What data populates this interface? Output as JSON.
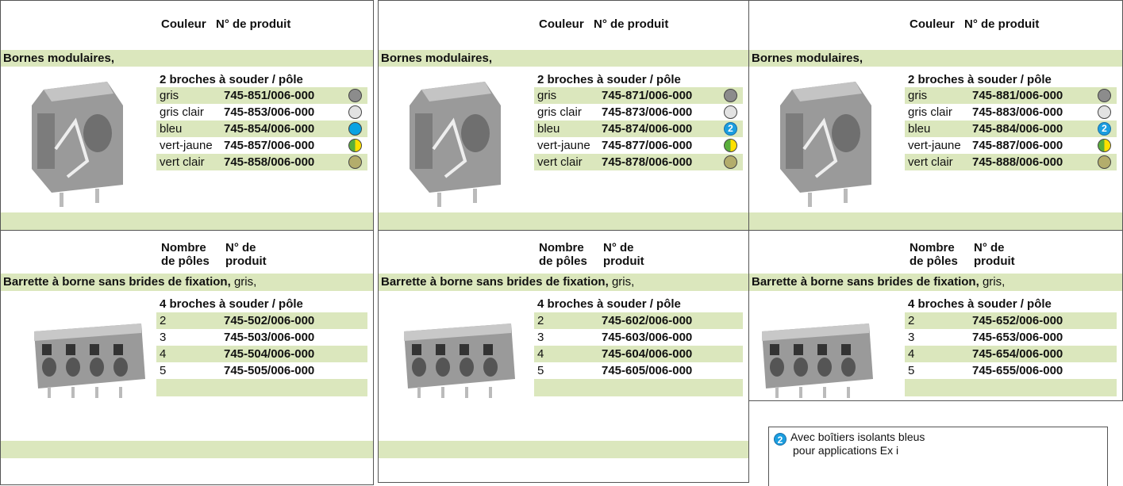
{
  "columns": [
    {
      "header": {
        "color": "Couleur",
        "product": "N° de produit"
      },
      "section1": {
        "title": "Bornes modulaires,",
        "subtitle": "2 broches à souder / pôle",
        "rows": [
          {
            "color": "gris",
            "product": "745-851/006-000"
          },
          {
            "color": "gris clair",
            "product": "745-853/006-000"
          },
          {
            "color": "bleu",
            "product": "745-854/006-000"
          },
          {
            "color": "vert-jaune",
            "product": "745-857/006-000"
          },
          {
            "color": "vert clair",
            "product": "745-858/006-000"
          }
        ]
      },
      "header2": {
        "count_line1": "Nombre",
        "count_line2": "de pôles",
        "product_line1": "N° de",
        "product_line2": "produit"
      },
      "section2": {
        "title": "Barrette à borne sans brides de fixation,",
        "title_suffix": "gris,",
        "subtitle": "4 broches à souder / pôle",
        "rows": [
          {
            "poles": 2,
            "product": "745-502/006-000"
          },
          {
            "poles": 3,
            "product": "745-503/006-000"
          },
          {
            "poles": 4,
            "product": "745-504/006-000"
          },
          {
            "poles": 5,
            "product": "745-505/006-000"
          }
        ]
      }
    },
    {
      "header": {
        "color": "Couleur",
        "product": "N° de produit"
      },
      "section1": {
        "title": "Bornes modulaires,",
        "subtitle": "2 broches à souder / pôle",
        "rows": [
          {
            "color": "gris",
            "product": "745-871/006-000"
          },
          {
            "color": "gris clair",
            "product": "745-873/006-000"
          },
          {
            "color": "bleu",
            "product": "745-874/006-000",
            "badge": "2"
          },
          {
            "color": "vert-jaune",
            "product": "745-877/006-000"
          },
          {
            "color": "vert clair",
            "product": "745-878/006-000"
          }
        ]
      },
      "header2": {
        "count_line1": "Nombre",
        "count_line2": "de pôles",
        "product_line1": "N° de",
        "product_line2": "produit"
      },
      "section2": {
        "title": "Barrette à borne sans brides de fixation,",
        "title_suffix": "gris,",
        "subtitle": "4 broches à souder / pôle",
        "rows": [
          {
            "poles": 2,
            "product": "745-602/006-000"
          },
          {
            "poles": 3,
            "product": "745-603/006-000"
          },
          {
            "poles": 4,
            "product": "745-604/006-000"
          },
          {
            "poles": 5,
            "product": "745-605/006-000"
          }
        ]
      }
    },
    {
      "header": {
        "color": "Couleur",
        "product": "N° de produit"
      },
      "section1": {
        "title": "Bornes modulaires,",
        "subtitle": "2 broches à souder / pôle",
        "rows": [
          {
            "color": "gris",
            "product": "745-881/006-000"
          },
          {
            "color": "gris clair",
            "product": "745-883/006-000"
          },
          {
            "color": "bleu",
            "product": "745-884/006-000",
            "badge": "2"
          },
          {
            "color": "vert-jaune",
            "product": "745-887/006-000"
          },
          {
            "color": "vert clair",
            "product": "745-888/006-000"
          }
        ]
      },
      "header2": {
        "count_line1": "Nombre",
        "count_line2": "de pôles",
        "product_line1": "N° de",
        "product_line2": "produit"
      },
      "section2": {
        "title": "Barrette à borne sans brides de fixation,",
        "title_suffix": "gris,",
        "subtitle": "4 broches à souder / pôle",
        "rows": [
          {
            "poles": 2,
            "product": "745-652/006-000"
          },
          {
            "poles": 3,
            "product": "745-653/006-000"
          },
          {
            "poles": 4,
            "product": "745-654/006-000"
          },
          {
            "poles": 5,
            "product": "745-655/006-000"
          }
        ]
      }
    }
  ],
  "footnote": {
    "badge": "2",
    "lines": [
      "Avec boîtiers isolants bleus",
      "pour applications Ex i"
    ]
  }
}
